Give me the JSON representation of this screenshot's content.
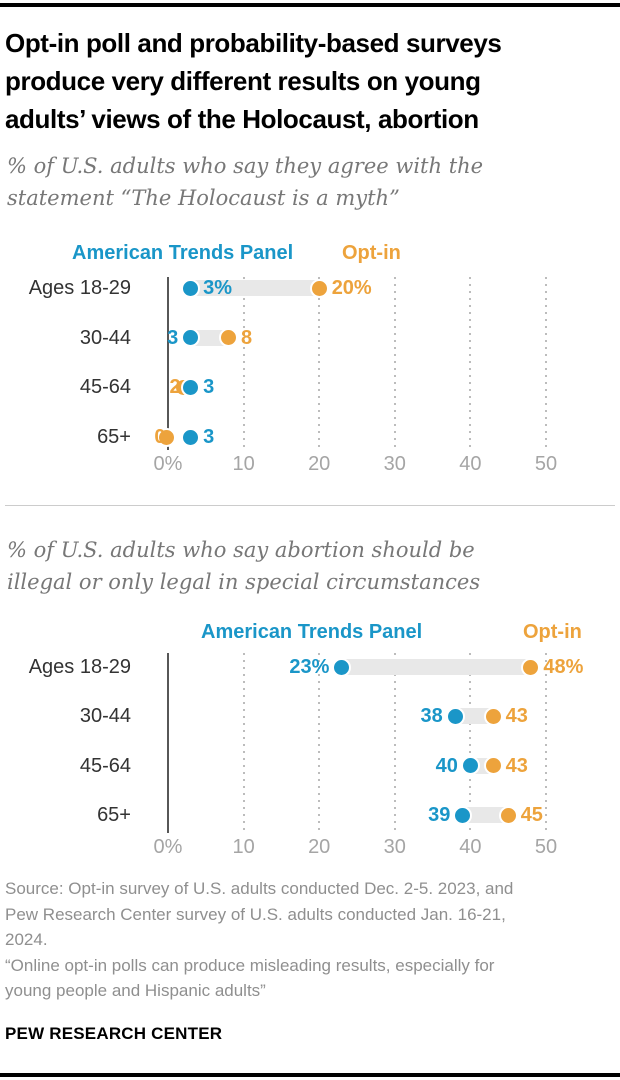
{
  "report": {
    "title_lines": [
      "Opt-in poll and probability-based surveys",
      "produce very different results on young",
      "adults’ views of the Holocaust, abortion"
    ],
    "colors": {
      "atp_blue": "#1A96C8",
      "optin_orange": "#EDA33C",
      "connector_gray": "#E8E8E8"
    },
    "footer": {
      "source_lines": [
        "Source: Opt-in survey of U.S. adults conducted Dec. 2-5. 2023, and",
        "Pew Research Center survey of U.S. adults conducted Jan. 16-21,",
        "2024.",
        "“Online opt-in polls can produce misleading results, especially for",
        "young people and Hispanic adults”"
      ],
      "brand": "PEW RESEARCH CENTER"
    }
  },
  "chart_data": [
    {
      "type": "dumbbell-dot-plot",
      "subtitle_lines": [
        "% of U.S. adults who say they agree with the",
        "statement “The Holocaust is a myth”"
      ],
      "legend": [
        {
          "label": "American Trends Panel",
          "color": "#1A96C8"
        },
        {
          "label": "Opt-in",
          "color": "#EDA33C"
        }
      ],
      "categories": [
        "Ages 18-29",
        "30-44",
        "45-64",
        "65+"
      ],
      "series": [
        {
          "name": "American Trends Panel",
          "color": "#1A96C8",
          "values": [
            3,
            3,
            3,
            3
          ],
          "labels": [
            "3%",
            "3",
            "3",
            "3"
          ]
        },
        {
          "name": "Opt-in",
          "color": "#EDA33C",
          "values": [
            20,
            8,
            2,
            0
          ],
          "labels": [
            "20%",
            "8",
            "2",
            "0"
          ]
        }
      ],
      "x_ticks": [
        {
          "v": 0,
          "label": "0%"
        },
        {
          "v": 10,
          "label": "10"
        },
        {
          "v": 20,
          "label": "20"
        },
        {
          "v": 30,
          "label": "30"
        },
        {
          "v": 40,
          "label": "40"
        },
        {
          "v": 50,
          "label": "50"
        }
      ],
      "xlim": [
        0,
        50
      ],
      "grid": "dotted-vertical"
    },
    {
      "type": "dumbbell-dot-plot",
      "subtitle_lines": [
        "% of U.S. adults who say abortion should be",
        "illegal or only legal in special circumstances"
      ],
      "legend": [
        {
          "label": "American Trends Panel",
          "color": "#1A96C8"
        },
        {
          "label": "Opt-in",
          "color": "#EDA33C"
        }
      ],
      "categories": [
        "Ages 18-29",
        "30-44",
        "45-64",
        "65+"
      ],
      "series": [
        {
          "name": "American Trends Panel",
          "color": "#1A96C8",
          "values": [
            23,
            38,
            40,
            39
          ],
          "labels": [
            "23%",
            "38",
            "40",
            "39"
          ]
        },
        {
          "name": "Opt-in",
          "color": "#EDA33C",
          "values": [
            48,
            43,
            43,
            45
          ],
          "labels": [
            "48%",
            "43",
            "43",
            "45"
          ]
        }
      ],
      "x_ticks": [
        {
          "v": 0,
          "label": "0%"
        },
        {
          "v": 10,
          "label": "10"
        },
        {
          "v": 20,
          "label": "20"
        },
        {
          "v": 30,
          "label": "30"
        },
        {
          "v": 40,
          "label": "40"
        },
        {
          "v": 50,
          "label": "50"
        }
      ],
      "xlim": [
        0,
        50
      ],
      "grid": "dotted-vertical"
    }
  ]
}
